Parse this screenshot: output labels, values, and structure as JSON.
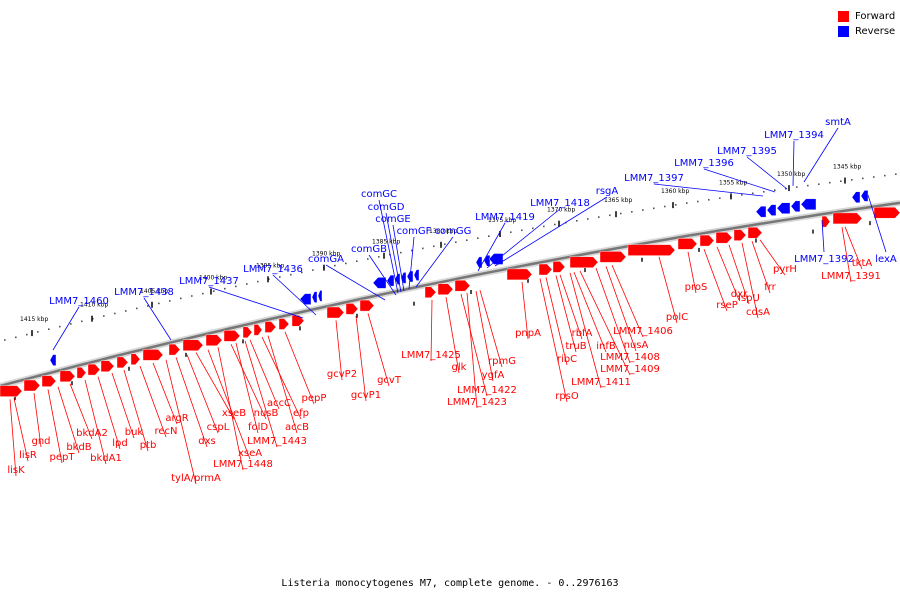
{
  "legend": {
    "forward_label": "Forward",
    "reverse_label": "Reverse",
    "forward_color": "#ff0000",
    "reverse_color": "#0000ff"
  },
  "caption": "Listeria monocytogenes M7, complete genome. - 0..2976163",
  "scale_labels": [
    "1415 kbp",
    "1410 kbp",
    "1405 kbp",
    "1400 kbp",
    "1395 kbp",
    "1390 kbp",
    "1385 kbp",
    "1380 kbp",
    "1375 kbp",
    "1370 kbp",
    "1365 kbp",
    "1360 kbp",
    "1355 kbp",
    "1350 kbp",
    "1345 kbp"
  ],
  "reverse_genes": [
    "LMM7_1460",
    "LMM7_1438",
    "LMM7_1437",
    "LMM7_1436",
    "comGA",
    "comGB",
    "comGC",
    "comGD",
    "comGE",
    "comGF",
    "comGG",
    "LMM7_1419",
    "LMM7_1418",
    "rsgA",
    "LMM7_1397",
    "LMM7_1396",
    "LMM7_1395",
    "LMM7_1394",
    "smtA",
    "LMM7_1392",
    "lexA"
  ],
  "forward_genes": [
    "lisK",
    "lisR",
    "gnd",
    "pepT",
    "bkdB",
    "bkdA2",
    "bkdA1",
    "lpd",
    "buk",
    "ptb",
    "recN",
    "argR",
    "tylA/prmA",
    "dxs",
    "cspL",
    "xseB",
    "xseA",
    "LMM7_1448",
    "nusB",
    "folD",
    "LMM7_1443",
    "accC",
    "efp",
    "accB",
    "pepP",
    "gcvP2",
    "gcvP1",
    "gcvT",
    "LMM7_1425",
    "glk",
    "LMM7_1422",
    "LMM7_1423",
    "ygfA",
    "rpmG",
    "pnpA",
    "ribC",
    "rpsO",
    "truB",
    "rbfA",
    "LMM7_1411",
    "infB",
    "LMM7_1409",
    "LMM7_1408",
    "nusA",
    "LMM7_1406",
    "polC",
    "proS",
    "rseP",
    "dxr",
    "ispU",
    "cdsA",
    "frr",
    "pyrH",
    "tktA",
    "LMM7_1391"
  ]
}
